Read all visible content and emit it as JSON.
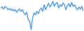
{
  "chart_data": {
    "type": "line",
    "color": "#3a8fd8",
    "tick_labels": false,
    "grid": false,
    "x": [
      0,
      1,
      2,
      3,
      4,
      5,
      6,
      7,
      8,
      9,
      10,
      11,
      12,
      13,
      14,
      15,
      16,
      17,
      18,
      19,
      20,
      21,
      22,
      23,
      24,
      25,
      26,
      27,
      28,
      29,
      30,
      31,
      32,
      33,
      34,
      35,
      36,
      37,
      38,
      39,
      40,
      41,
      42,
      43,
      44,
      45,
      46,
      47,
      48,
      49,
      50,
      51,
      52,
      53,
      54,
      55,
      56,
      57
    ],
    "values": [
      75,
      78,
      72,
      80,
      76,
      70,
      74,
      68,
      72,
      66,
      70,
      62,
      68,
      72,
      65,
      70,
      60,
      55,
      62,
      40,
      35,
      10,
      45,
      60,
      55,
      65,
      58,
      70,
      75,
      65,
      85,
      70,
      80,
      90,
      78,
      85,
      95,
      80,
      88,
      92,
      75,
      85,
      80,
      90,
      85,
      70,
      82,
      88,
      78,
      92,
      80,
      85,
      75,
      70,
      78,
      72,
      80,
      66
    ],
    "xlim": [
      0,
      57
    ],
    "ylim": [
      10,
      95
    ]
  }
}
